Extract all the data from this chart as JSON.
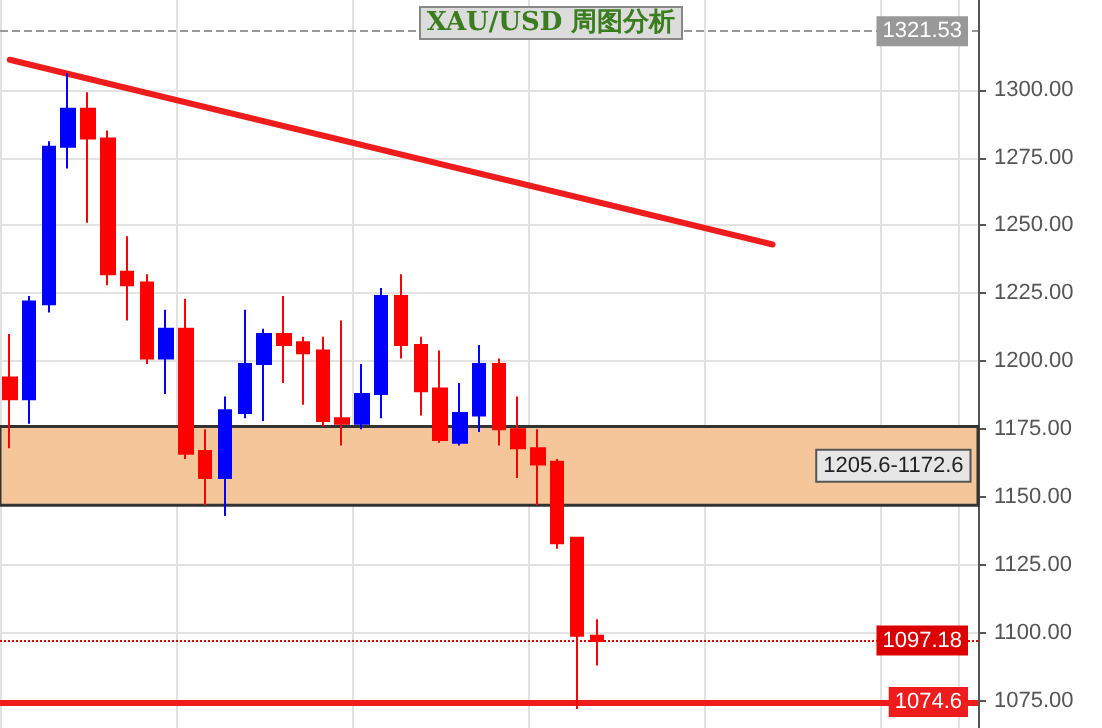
{
  "chart_data": {
    "type": "candlestick",
    "title": "XAU/USD 周图分析",
    "categories": [
      null,
      null,
      null,
      null,
      null,
      null,
      null,
      null,
      null,
      null,
      null,
      null,
      null,
      null,
      null,
      null,
      null,
      null,
      null,
      null,
      null,
      null,
      null,
      null,
      null,
      null,
      null,
      null,
      null,
      null,
      null,
      null,
      null,
      null,
      null,
      null,
      null,
      null,
      null,
      null,
      null,
      null,
      null,
      null,
      null,
      null,
      null,
      null,
      null,
      null
    ],
    "ohlc": [
      [
        1194,
        1210,
        1168,
        1186
      ],
      [
        1186,
        1224,
        1177,
        1222
      ],
      [
        1221,
        1281,
        1218,
        1279
      ],
      [
        1279,
        1306,
        1271,
        1293
      ],
      [
        1293,
        1299,
        1251,
        1282
      ],
      [
        1282,
        1285,
        1228,
        1232
      ],
      [
        1233,
        1246,
        1215,
        1228
      ],
      [
        1229,
        1232,
        1199,
        1201
      ],
      [
        1201,
        1219,
        1188,
        1212
      ],
      [
        1212,
        1223,
        1164,
        1166
      ],
      [
        1167,
        1175,
        1147,
        1157
      ],
      [
        1157,
        1187,
        1143,
        1182
      ],
      [
        1181,
        1219,
        1179,
        1199
      ],
      [
        1199,
        1212,
        1178,
        1210
      ],
      [
        1210,
        1224,
        1192,
        1206
      ],
      [
        1207,
        1209,
        1184,
        1203
      ],
      [
        1204,
        1209,
        1176,
        1178
      ],
      [
        1179,
        1215,
        1169,
        1177
      ],
      [
        1177,
        1199,
        1175,
        1188
      ],
      [
        1188,
        1227,
        1179,
        1224
      ],
      [
        1224,
        1232,
        1201,
        1206
      ],
      [
        1206,
        1209,
        1180,
        1189
      ],
      [
        1190,
        1204,
        1170,
        1171
      ],
      [
        1170,
        1192,
        1169,
        1181
      ],
      [
        1180,
        1206,
        1174,
        1199
      ],
      [
        1199,
        1201,
        1169,
        1175
      ],
      [
        1175,
        1187,
        1157,
        1168
      ],
      [
        1168,
        1175,
        1147,
        1162
      ],
      [
        1163,
        1164,
        1131,
        1133
      ],
      [
        1135,
        1135,
        1072,
        1099
      ],
      [
        1099,
        1105,
        1088,
        1097
      ],
      null,
      null,
      null,
      null,
      null,
      null,
      null,
      null,
      null,
      null,
      null,
      null,
      null,
      null,
      null,
      null,
      null,
      null,
      null
    ],
    "colors": [
      "#ff0000",
      "#0000ff",
      "#0000ff",
      "#0000ff",
      "#ff0000",
      "#ff0000",
      "#ff0000",
      "#ff0000",
      "#0000ff",
      "#ff0000",
      "#ff0000",
      "#0000ff",
      "#0000ff",
      "#0000ff",
      "#ff0000",
      "#ff0000",
      "#ff0000",
      "#ff0000",
      "#0000ff",
      "#0000ff",
      "#ff0000",
      "#ff0000",
      "#ff0000",
      "#0000ff",
      "#0000ff",
      "#ff0000",
      "#ff0000",
      "#ff0000",
      "#ff0000",
      "#ff0000",
      "#ff0000",
      null,
      null,
      null,
      null,
      null,
      null,
      null,
      null,
      null,
      null,
      null,
      null,
      null,
      null,
      null,
      null,
      null,
      null,
      null
    ],
    "series": [
      {
        "type": "line",
        "color": "#ee1c1c",
        "values": [
          1311,
          null,
          null,
          null,
          null,
          null,
          null,
          null,
          null,
          null,
          null,
          null,
          null,
          null,
          null,
          null,
          null,
          null,
          null,
          null,
          null,
          null,
          null,
          null,
          null,
          null,
          null,
          null,
          null,
          null,
          null,
          null,
          null,
          null,
          null,
          null,
          null,
          null,
          null,
          1243,
          null,
          null,
          null,
          null,
          null,
          null,
          null,
          null,
          null,
          null
        ]
      }
    ],
    "ylim": [
      1065,
      1333
    ],
    "yticks": [
      {
        "value": 1075,
        "label": "1075.00"
      },
      {
        "value": 1100,
        "label": "1100.00"
      },
      {
        "value": 1125,
        "label": "1125.00"
      },
      {
        "value": 1150,
        "label": "1150.00"
      },
      {
        "value": 1175,
        "label": "1175.00"
      },
      {
        "value": 1200,
        "label": "1200.00"
      },
      {
        "value": 1225,
        "label": "1225.00"
      },
      {
        "value": 1250,
        "label": "1250.00"
      },
      {
        "value": 1275,
        "label": "1275.00"
      },
      {
        "value": 1300,
        "label": "1300.00"
      }
    ],
    "ref_lines": [
      {
        "axis": "y",
        "value": 1321.53,
        "label": "1321.53",
        "color": "#999999",
        "line_style": "dashed"
      },
      {
        "axis": "y",
        "value": 1097.18,
        "label": "1097.18",
        "color": "#dd0000",
        "line_style": "dotted"
      },
      {
        "axis": "y",
        "value": 1074.6,
        "label": "1074.6",
        "color": "#ee1c1c",
        "line_style": "solid"
      }
    ],
    "bands": [
      {
        "axis": "y",
        "from": 1147,
        "to": 1176,
        "label": "1205.6-1172.6",
        "color": "#f5c69a"
      }
    ],
    "grid": true,
    "tick_labels": "y"
  }
}
